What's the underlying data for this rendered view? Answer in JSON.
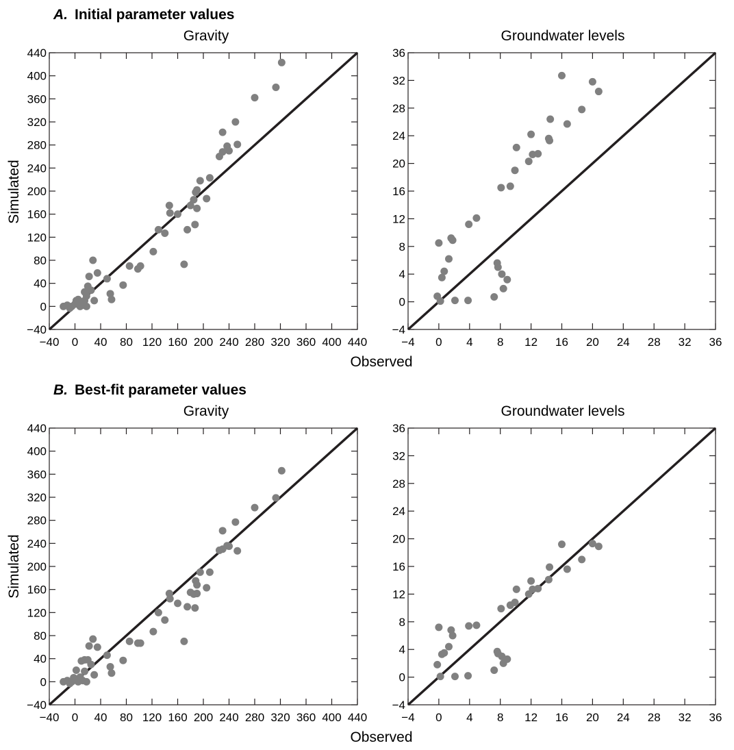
{
  "sections": [
    {
      "letter": "A.",
      "title": "Initial parameter values"
    },
    {
      "letter": "B.",
      "title": "Best-fit parameter values"
    }
  ],
  "labels": {
    "ylabel": "Simulated",
    "xlabel": "Observed"
  },
  "colors": {
    "points": "#808080",
    "axes": "#231f20",
    "line": "#231f20"
  },
  "chart_data": [
    {
      "type": "scatter",
      "title": "Gravity",
      "xlabel": "Observed",
      "ylabel": "Simulated",
      "xlim": [
        -40,
        440
      ],
      "ylim": [
        -40,
        440
      ],
      "xticks": [
        -40,
        0,
        40,
        80,
        120,
        160,
        200,
        240,
        280,
        320,
        360,
        400,
        440
      ],
      "yticks": [
        -40,
        0,
        40,
        80,
        120,
        160,
        200,
        240,
        280,
        320,
        360,
        400,
        440
      ],
      "reference_line": "1:1",
      "points": [
        [
          -18,
          0
        ],
        [
          -12,
          2
        ],
        [
          -8,
          -3
        ],
        [
          -5,
          0
        ],
        [
          0,
          4
        ],
        [
          2,
          10
        ],
        [
          5,
          12
        ],
        [
          8,
          0
        ],
        [
          10,
          5
        ],
        [
          12,
          2
        ],
        [
          15,
          10
        ],
        [
          15,
          25
        ],
        [
          18,
          0
        ],
        [
          18,
          18
        ],
        [
          20,
          35
        ],
        [
          22,
          52
        ],
        [
          25,
          28
        ],
        [
          28,
          80
        ],
        [
          30,
          10
        ],
        [
          35,
          58
        ],
        [
          50,
          48
        ],
        [
          55,
          22
        ],
        [
          57,
          12
        ],
        [
          75,
          37
        ],
        [
          85,
          70
        ],
        [
          98,
          65
        ],
        [
          102,
          70
        ],
        [
          122,
          95
        ],
        [
          130,
          133
        ],
        [
          140,
          127
        ],
        [
          147,
          175
        ],
        [
          148,
          162
        ],
        [
          160,
          160
        ],
        [
          170,
          73
        ],
        [
          175,
          133
        ],
        [
          180,
          175
        ],
        [
          185,
          185
        ],
        [
          187,
          142
        ],
        [
          188,
          198
        ],
        [
          190,
          202
        ],
        [
          190,
          170
        ],
        [
          195,
          218
        ],
        [
          205,
          187
        ],
        [
          210,
          223
        ],
        [
          225,
          260
        ],
        [
          230,
          268
        ],
        [
          230,
          302
        ],
        [
          237,
          278
        ],
        [
          240,
          270
        ],
        [
          250,
          320
        ],
        [
          253,
          281
        ],
        [
          280,
          362
        ],
        [
          313,
          380
        ],
        [
          322,
          423
        ]
      ]
    },
    {
      "type": "scatter",
      "title": "Groundwater levels",
      "xlabel": "Observed",
      "ylabel": "Simulated",
      "xlim": [
        -4,
        36
      ],
      "ylim": [
        -4,
        36
      ],
      "xticks": [
        -4,
        0,
        4,
        8,
        12,
        16,
        20,
        24,
        28,
        32,
        36
      ],
      "yticks": [
        -4,
        0,
        4,
        8,
        12,
        16,
        20,
        24,
        28,
        32,
        36
      ],
      "reference_line": "1:1",
      "points": [
        [
          -0.2,
          0.8
        ],
        [
          0,
          8.5
        ],
        [
          0.2,
          0.1
        ],
        [
          0.4,
          3.5
        ],
        [
          0.7,
          4.4
        ],
        [
          1.3,
          6.2
        ],
        [
          1.6,
          9.2
        ],
        [
          1.8,
          8.9
        ],
        [
          2.1,
          0.2
        ],
        [
          3.8,
          0.2
        ],
        [
          3.9,
          11.2
        ],
        [
          4.9,
          12.1
        ],
        [
          7.2,
          0.7
        ],
        [
          7.6,
          5.6
        ],
        [
          7.7,
          5
        ],
        [
          8.1,
          16.5
        ],
        [
          8.2,
          4
        ],
        [
          8.4,
          1.9
        ],
        [
          8.9,
          3.2
        ],
        [
          9.3,
          16.7
        ],
        [
          9.9,
          19
        ],
        [
          10.1,
          22.3
        ],
        [
          11.7,
          20.3
        ],
        [
          12,
          24.2
        ],
        [
          12.2,
          21.3
        ],
        [
          12.9,
          21.4
        ],
        [
          14.3,
          23.6
        ],
        [
          14.4,
          23.3
        ],
        [
          14.5,
          26.4
        ],
        [
          16,
          32.7
        ],
        [
          16.7,
          25.7
        ],
        [
          18.6,
          27.8
        ],
        [
          20,
          31.8
        ],
        [
          20.8,
          30.4
        ]
      ]
    },
    {
      "type": "scatter",
      "title": "Gravity",
      "xlabel": "Observed",
      "ylabel": "Simulated",
      "xlim": [
        -40,
        440
      ],
      "ylim": [
        -40,
        440
      ],
      "xticks": [
        -40,
        0,
        40,
        80,
        120,
        160,
        200,
        240,
        280,
        320,
        360,
        400,
        440
      ],
      "yticks": [
        -40,
        0,
        40,
        80,
        120,
        160,
        200,
        240,
        280,
        320,
        360,
        400,
        440
      ],
      "reference_line": "1:1",
      "points": [
        [
          -18,
          0
        ],
        [
          -12,
          2
        ],
        [
          -8,
          -3
        ],
        [
          -5,
          0
        ],
        [
          -2,
          7
        ],
        [
          0,
          3
        ],
        [
          2,
          20
        ],
        [
          5,
          0
        ],
        [
          8,
          8
        ],
        [
          10,
          36
        ],
        [
          12,
          2
        ],
        [
          15,
          18
        ],
        [
          15,
          38
        ],
        [
          18,
          0
        ],
        [
          20,
          38
        ],
        [
          22,
          62
        ],
        [
          25,
          30
        ],
        [
          28,
          74
        ],
        [
          30,
          12
        ],
        [
          35,
          60
        ],
        [
          50,
          46
        ],
        [
          55,
          26
        ],
        [
          57,
          15
        ],
        [
          75,
          37
        ],
        [
          85,
          70
        ],
        [
          98,
          67
        ],
        [
          102,
          67
        ],
        [
          122,
          87
        ],
        [
          130,
          120
        ],
        [
          140,
          107
        ],
        [
          147,
          153
        ],
        [
          148,
          144
        ],
        [
          160,
          136
        ],
        [
          170,
          70
        ],
        [
          175,
          130
        ],
        [
          180,
          155
        ],
        [
          185,
          152
        ],
        [
          187,
          128
        ],
        [
          188,
          175
        ],
        [
          190,
          168
        ],
        [
          190,
          153
        ],
        [
          195,
          190
        ],
        [
          205,
          163
        ],
        [
          210,
          190
        ],
        [
          225,
          228
        ],
        [
          230,
          262
        ],
        [
          230,
          230
        ],
        [
          237,
          236
        ],
        [
          240,
          235
        ],
        [
          250,
          277
        ],
        [
          253,
          227
        ],
        [
          280,
          302
        ],
        [
          313,
          319
        ],
        [
          322,
          366
        ]
      ]
    },
    {
      "type": "scatter",
      "title": "Groundwater levels",
      "xlabel": "Observed",
      "ylabel": "Simulated",
      "xlim": [
        -4,
        36
      ],
      "ylim": [
        -4,
        36
      ],
      "xticks": [
        -4,
        0,
        4,
        8,
        12,
        16,
        20,
        24,
        28,
        32,
        36
      ],
      "yticks": [
        -4,
        0,
        4,
        8,
        12,
        16,
        20,
        24,
        28,
        32,
        36
      ],
      "reference_line": "1:1",
      "points": [
        [
          -0.2,
          1.8
        ],
        [
          0,
          7.2
        ],
        [
          0.2,
          0.1
        ],
        [
          0.4,
          3.3
        ],
        [
          0.7,
          3.5
        ],
        [
          1.3,
          4.4
        ],
        [
          1.6,
          6.8
        ],
        [
          1.8,
          6
        ],
        [
          2.1,
          0.1
        ],
        [
          3.8,
          0.2
        ],
        [
          3.9,
          7.4
        ],
        [
          4.9,
          7.5
        ],
        [
          7.2,
          1
        ],
        [
          7.6,
          3.7
        ],
        [
          7.7,
          3.4
        ],
        [
          8.1,
          9.9
        ],
        [
          8.2,
          3
        ],
        [
          8.4,
          2
        ],
        [
          8.9,
          2.6
        ],
        [
          9.3,
          10.4
        ],
        [
          9.9,
          10.8
        ],
        [
          10.1,
          12.7
        ],
        [
          11.7,
          12
        ],
        [
          12,
          13.9
        ],
        [
          12.2,
          12.7
        ],
        [
          12.9,
          12.8
        ],
        [
          14.3,
          14.1
        ],
        [
          14.4,
          15.9
        ],
        [
          16,
          19.2
        ],
        [
          16.7,
          15.6
        ],
        [
          18.6,
          17
        ],
        [
          20,
          19.3
        ],
        [
          20.8,
          18.9
        ]
      ]
    }
  ]
}
